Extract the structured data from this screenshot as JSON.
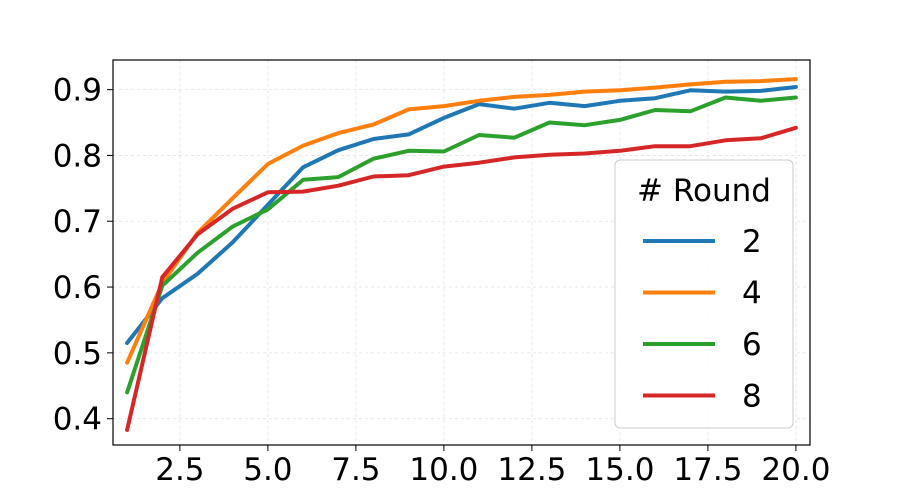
{
  "chart_data": {
    "type": "line",
    "title": "",
    "xlabel": "",
    "ylabel": "",
    "xlim": [
      0.6,
      20.4
    ],
    "ylim": [
      0.36,
      0.945
    ],
    "x_ticks": [
      2.5,
      5.0,
      7.5,
      10.0,
      12.5,
      15.0,
      17.5,
      20.0
    ],
    "x_tick_labels": [
      "2.5",
      "5.0",
      "7.5",
      "10.0",
      "12.5",
      "15.0",
      "17.5",
      "20.0"
    ],
    "y_ticks": [
      0.4,
      0.5,
      0.6,
      0.7,
      0.8,
      0.9
    ],
    "y_tick_labels": [
      "0.4",
      "0.5",
      "0.6",
      "0.7",
      "0.8",
      "0.9"
    ],
    "grid": true,
    "legend_title": "# Round",
    "legend_position": "right",
    "x": [
      1,
      2,
      3,
      4,
      5,
      6,
      7,
      8,
      9,
      10,
      11,
      12,
      13,
      14,
      15,
      16,
      17,
      18,
      19,
      20
    ],
    "series": [
      {
        "name": "2",
        "color": "#1f77b4",
        "values": [
          0.515,
          0.583,
          0.62,
          0.668,
          0.725,
          0.782,
          0.808,
          0.825,
          0.832,
          0.857,
          0.878,
          0.871,
          0.88,
          0.875,
          0.883,
          0.887,
          0.899,
          0.897,
          0.898,
          0.904
        ]
      },
      {
        "name": "4",
        "color": "#ff7f0e",
        "values": [
          0.485,
          0.606,
          0.682,
          0.735,
          0.787,
          0.815,
          0.834,
          0.847,
          0.87,
          0.875,
          0.883,
          0.889,
          0.892,
          0.897,
          0.899,
          0.903,
          0.908,
          0.912,
          0.913,
          0.916
        ]
      },
      {
        "name": "6",
        "color": "#2ca02c",
        "values": [
          0.44,
          0.602,
          0.652,
          0.692,
          0.718,
          0.763,
          0.767,
          0.795,
          0.807,
          0.806,
          0.831,
          0.827,
          0.85,
          0.846,
          0.854,
          0.869,
          0.867,
          0.888,
          0.883,
          0.888
        ]
      },
      {
        "name": "8",
        "color": "#d62728",
        "values": [
          0.383,
          0.615,
          0.68,
          0.719,
          0.744,
          0.745,
          0.754,
          0.768,
          0.77,
          0.783,
          0.789,
          0.797,
          0.801,
          0.803,
          0.807,
          0.814,
          0.814,
          0.823,
          0.826,
          0.842
        ]
      }
    ]
  }
}
